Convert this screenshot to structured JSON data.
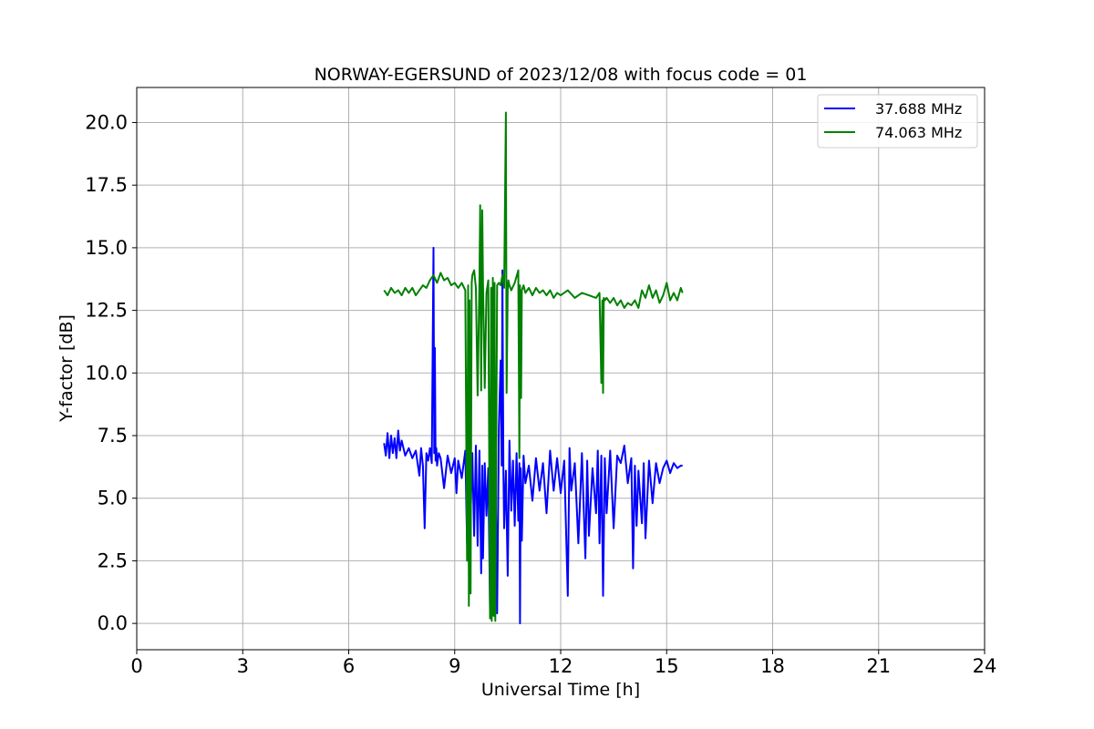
{
  "chart_data": {
    "type": "line",
    "title": "NORWAY-EGERSUND of 2023/12/08 with focus code = 01",
    "xlabel": "Universal Time [h]",
    "ylabel": "Y-factor [dB]",
    "xlim": [
      0,
      24
    ],
    "ylim": [
      -1.05,
      21.4
    ],
    "xticks": [
      0,
      3,
      6,
      9,
      12,
      15,
      18,
      21,
      24
    ],
    "xtick_labels": [
      "0",
      "3",
      "6",
      "9",
      "12",
      "15",
      "18",
      "21",
      "24"
    ],
    "yticks": [
      0,
      2.5,
      5,
      7.5,
      10,
      12.5,
      15,
      17.5,
      20
    ],
    "ytick_labels": [
      "0.0",
      "2.5",
      "5.0",
      "7.5",
      "10.0",
      "12.5",
      "15.0",
      "17.5",
      "20.0"
    ],
    "grid": true,
    "legend_position": "top-right",
    "series": [
      {
        "name": "37.688 MHz",
        "color": "#0000ff",
        "x": [
          7.0,
          7.05,
          7.1,
          7.15,
          7.2,
          7.25,
          7.3,
          7.35,
          7.4,
          7.45,
          7.5,
          7.6,
          7.7,
          7.8,
          7.9,
          8.0,
          8.05,
          8.1,
          8.15,
          8.2,
          8.25,
          8.3,
          8.35,
          8.4,
          8.42,
          8.44,
          8.46,
          8.48,
          8.5,
          8.55,
          8.6,
          8.7,
          8.8,
          8.9,
          9.0,
          9.05,
          9.1,
          9.2,
          9.3,
          9.35,
          9.38,
          9.4,
          9.42,
          9.45,
          9.5,
          9.55,
          9.6,
          9.65,
          9.7,
          9.75,
          9.78,
          9.8,
          9.85,
          9.9,
          9.95,
          10.0,
          10.05,
          10.08,
          10.1,
          10.13,
          10.15,
          10.2,
          10.25,
          10.3,
          10.33,
          10.35,
          10.38,
          10.4,
          10.45,
          10.5,
          10.55,
          10.6,
          10.65,
          10.7,
          10.75,
          10.8,
          10.83,
          10.85,
          10.87,
          10.9,
          10.95,
          11.0,
          11.1,
          11.2,
          11.3,
          11.4,
          11.5,
          11.6,
          11.7,
          11.8,
          11.9,
          12.0,
          12.1,
          12.2,
          12.25,
          12.3,
          12.4,
          12.5,
          12.6,
          12.7,
          12.75,
          12.8,
          12.9,
          13.0,
          13.05,
          13.1,
          13.15,
          13.2,
          13.25,
          13.3,
          13.4,
          13.5,
          13.6,
          13.7,
          13.8,
          13.9,
          14.0,
          14.05,
          14.1,
          14.15,
          14.2,
          14.3,
          14.35,
          14.4,
          14.5,
          14.6,
          14.7,
          14.8,
          14.9,
          15.0,
          15.1,
          15.2,
          15.3,
          15.4,
          15.45
        ],
        "values": [
          7.2,
          6.7,
          7.6,
          6.6,
          7.5,
          6.8,
          7.4,
          6.6,
          7.7,
          6.9,
          7.3,
          6.7,
          7.0,
          6.6,
          6.9,
          5.9,
          7.0,
          6.3,
          3.8,
          6.8,
          6.5,
          7.0,
          6.4,
          15.0,
          6.8,
          11.0,
          6.5,
          7.0,
          6.3,
          6.8,
          6.6,
          5.4,
          6.7,
          6.0,
          6.6,
          5.2,
          6.5,
          5.8,
          6.9,
          3.2,
          6.4,
          2.5,
          6.6,
          4.3,
          6.8,
          3.5,
          7.1,
          3.1,
          6.9,
          2.0,
          6.3,
          2.6,
          6.4,
          4.3,
          6.2,
          0.6,
          6.5,
          0.5,
          5.4,
          0.3,
          6.6,
          0.4,
          7.8,
          10.5,
          6.3,
          14.1,
          6.0,
          3.8,
          6.1,
          1.9,
          7.3,
          4.5,
          6.5,
          3.9,
          6.8,
          4.1,
          6.4,
          0.0,
          6.2,
          3.3,
          6.7,
          5.6,
          6.3,
          4.9,
          6.6,
          5.3,
          6.4,
          4.4,
          6.9,
          5.3,
          6.6,
          5.2,
          6.5,
          1.1,
          7.0,
          5.3,
          6.4,
          3.2,
          6.8,
          2.6,
          6.5,
          3.5,
          6.2,
          4.4,
          6.9,
          3.2,
          6.7,
          1.1,
          6.6,
          4.4,
          6.9,
          3.8,
          6.7,
          6.4,
          7.1,
          5.6,
          6.6,
          2.2,
          6.3,
          3.9,
          6.1,
          4.0,
          6.4,
          3.4,
          6.5,
          4.8,
          6.4,
          5.6,
          6.2,
          6.5,
          6.0,
          6.4,
          6.2,
          6.3,
          6.3
        ]
      },
      {
        "name": "74.063 MHz",
        "color": "#008000",
        "x": [
          7.0,
          7.1,
          7.2,
          7.3,
          7.4,
          7.5,
          7.6,
          7.7,
          7.8,
          7.9,
          8.0,
          8.1,
          8.2,
          8.3,
          8.4,
          8.5,
          8.6,
          8.7,
          8.8,
          8.9,
          9.0,
          9.1,
          9.2,
          9.3,
          9.35,
          9.38,
          9.4,
          9.42,
          9.45,
          9.48,
          9.5,
          9.55,
          9.6,
          9.65,
          9.7,
          9.72,
          9.75,
          9.78,
          9.8,
          9.85,
          9.9,
          9.95,
          10.0,
          10.03,
          10.05,
          10.08,
          10.1,
          10.13,
          10.15,
          10.2,
          10.25,
          10.3,
          10.35,
          10.4,
          10.45,
          10.47,
          10.5,
          10.52,
          10.55,
          10.6,
          10.7,
          10.8,
          10.83,
          10.85,
          10.88,
          10.9,
          10.95,
          11.0,
          11.1,
          11.2,
          11.3,
          11.4,
          11.5,
          11.6,
          11.7,
          11.8,
          11.9,
          12.0,
          12.2,
          12.4,
          12.6,
          12.8,
          13.0,
          13.1,
          13.15,
          13.18,
          13.2,
          13.22,
          13.25,
          13.3,
          13.4,
          13.5,
          13.6,
          13.7,
          13.8,
          13.9,
          14.0,
          14.1,
          14.2,
          14.3,
          14.4,
          14.5,
          14.6,
          14.7,
          14.8,
          14.9,
          15.0,
          15.1,
          15.2,
          15.3,
          15.4,
          15.45
        ],
        "values": [
          13.3,
          13.1,
          13.4,
          13.2,
          13.3,
          13.1,
          13.4,
          13.2,
          13.4,
          13.1,
          13.3,
          13.5,
          13.4,
          13.7,
          13.9,
          13.6,
          14.0,
          13.7,
          13.8,
          13.5,
          13.6,
          13.4,
          13.6,
          13.3,
          2.5,
          13.5,
          0.7,
          12.9,
          1.2,
          13.6,
          13.9,
          14.1,
          13.4,
          9.1,
          13.7,
          16.7,
          9.3,
          16.5,
          13.6,
          9.4,
          13.2,
          13.7,
          0.2,
          13.4,
          0.1,
          13.8,
          0.3,
          13.6,
          0.1,
          13.5,
          13.6,
          13.5,
          13.9,
          13.4,
          20.4,
          9.2,
          13.3,
          13.7,
          13.5,
          13.3,
          13.6,
          14.1,
          6.6,
          13.5,
          9.0,
          13.3,
          13.5,
          13.2,
          13.4,
          13.1,
          13.4,
          13.2,
          13.3,
          13.1,
          13.3,
          13.0,
          13.2,
          13.1,
          13.3,
          13.0,
          13.2,
          13.1,
          13.0,
          13.2,
          9.6,
          12.9,
          9.2,
          13.0,
          12.9,
          13.0,
          12.8,
          13.0,
          12.7,
          12.9,
          12.6,
          12.8,
          12.7,
          12.9,
          12.6,
          13.3,
          13.0,
          13.5,
          13.0,
          13.3,
          12.8,
          13.1,
          13.6,
          12.9,
          13.2,
          12.9,
          13.4,
          13.2
        ]
      }
    ]
  }
}
